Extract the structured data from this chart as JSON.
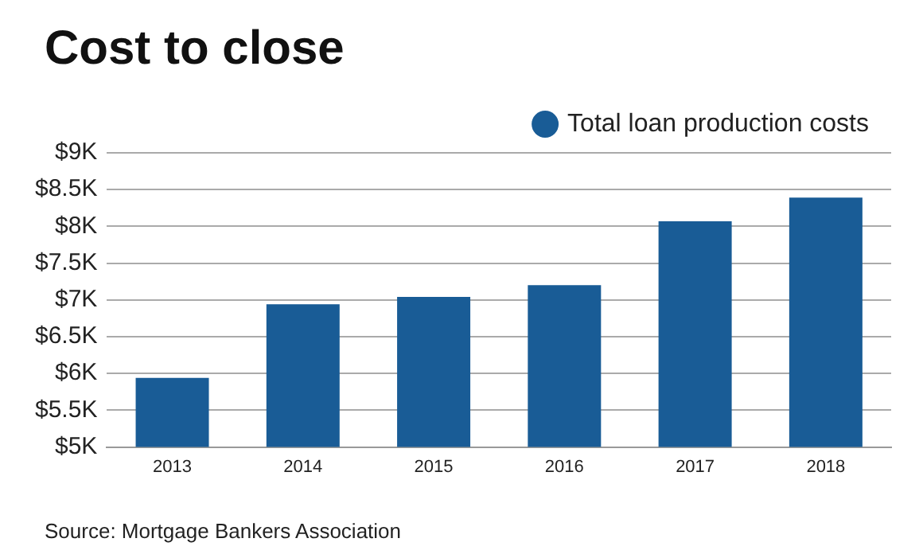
{
  "chart_data": {
    "type": "bar",
    "title": "Cost to close",
    "categories": [
      "2013",
      "2014",
      "2015",
      "2016",
      "2017",
      "2018"
    ],
    "series": [
      {
        "name": "Total loan production costs",
        "color": "#195c96",
        "values": [
          5.94,
          6.94,
          7.04,
          7.2,
          8.07,
          8.39
        ]
      }
    ],
    "ylim": [
      5,
      9
    ],
    "yticks": [
      {
        "value": 5,
        "label": "$5K"
      },
      {
        "value": 5.5,
        "label": "$5.5K"
      },
      {
        "value": 6,
        "label": "$6K"
      },
      {
        "value": 6.5,
        "label": "$6.5K"
      },
      {
        "value": 7,
        "label": "$7K"
      },
      {
        "value": 7.5,
        "label": "$7.5K"
      },
      {
        "value": 8,
        "label": "$8K"
      },
      {
        "value": 8.5,
        "label": "$8.5K"
      },
      {
        "value": 9,
        "label": "$9K"
      }
    ],
    "grid": "y",
    "legend": "top right",
    "annotations": [
      "Source: Mortgage Bankers Association"
    ]
  }
}
